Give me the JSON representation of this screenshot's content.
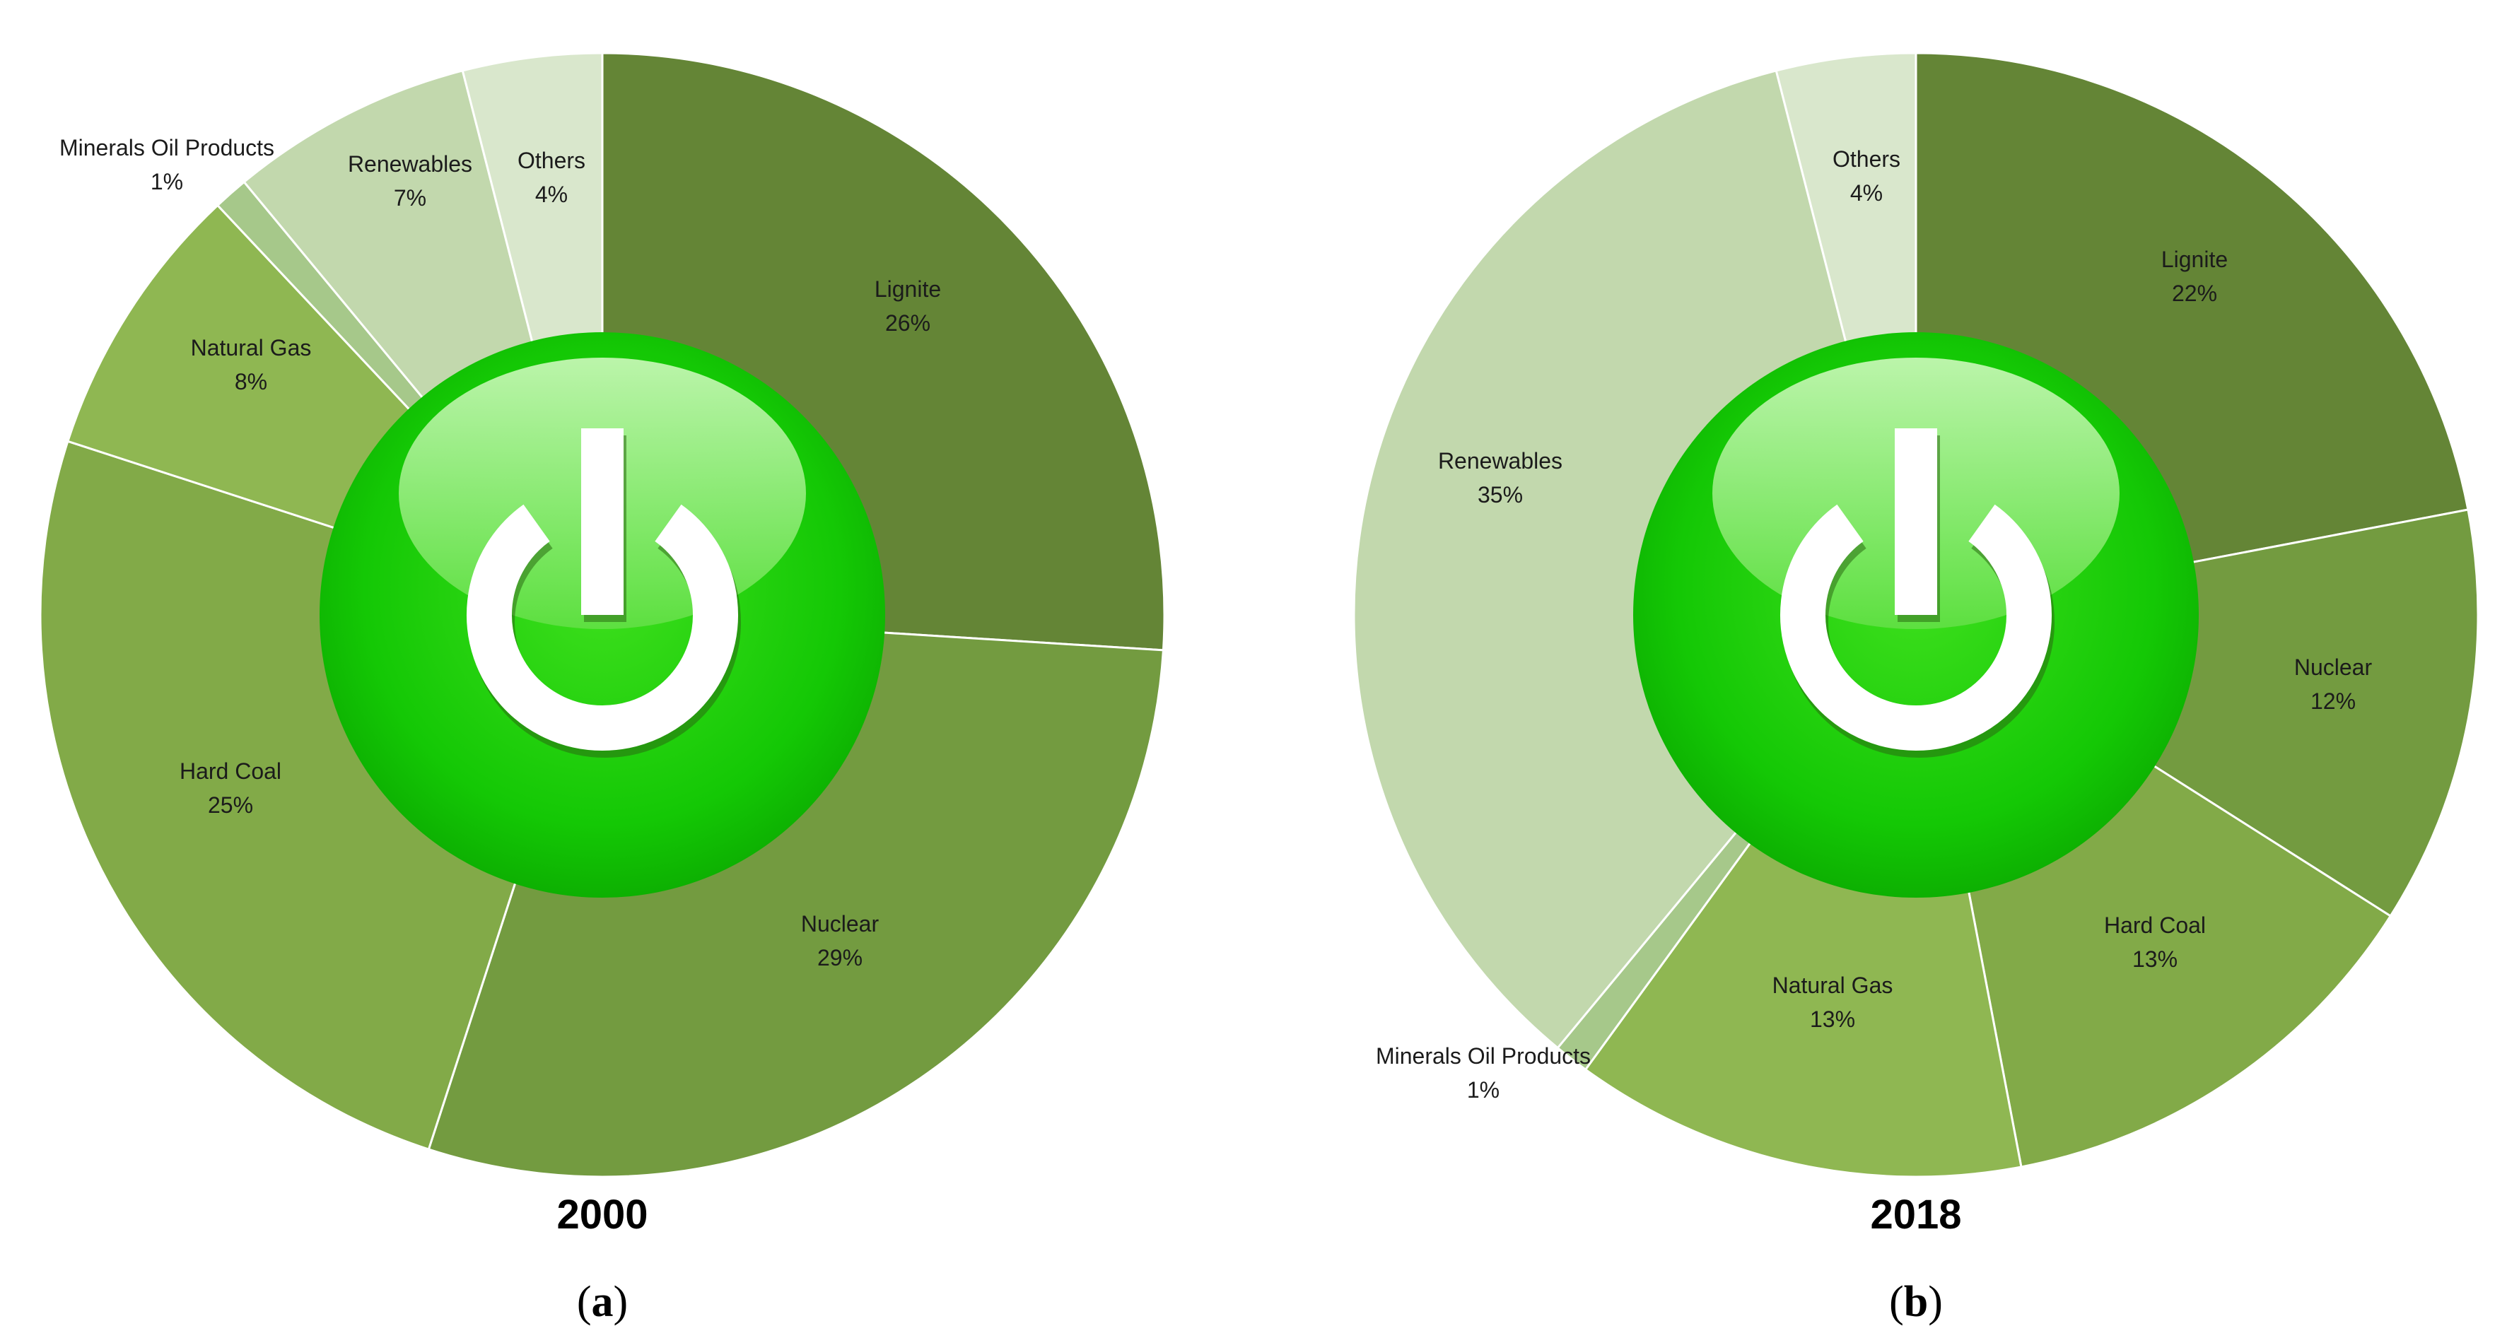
{
  "chart_data": [
    {
      "type": "pie",
      "title": "2000",
      "caption": {
        "open": "(",
        "letter": "a",
        "close": ")"
      },
      "slices": [
        {
          "name": "Lignite",
          "value": 26,
          "label": "26%",
          "color": "#648536"
        },
        {
          "name": "Nuclear",
          "value": 29,
          "label": "29%",
          "color": "#739b40"
        },
        {
          "name": "Hard Coal",
          "value": 25,
          "label": "25%",
          "color": "#82aa48"
        },
        {
          "name": "Natural Gas",
          "value": 8,
          "label": "8%",
          "color": "#8fb752"
        },
        {
          "name": "Minerals Oil Products",
          "value": 1,
          "label": "1%",
          "color": "#a6c88a"
        },
        {
          "name": "Renewables",
          "value": 7,
          "label": "7%",
          "color": "#c2d8ad"
        },
        {
          "name": "Others",
          "value": 4,
          "label": "4%",
          "color": "#d9e7cc"
        }
      ]
    },
    {
      "type": "pie",
      "title": "2018",
      "caption": {
        "open": "(",
        "letter": "b",
        "close": ")"
      },
      "slices": [
        {
          "name": "Lignite",
          "value": 22,
          "label": "22%",
          "color": "#648536"
        },
        {
          "name": "Nuclear",
          "value": 12,
          "label": "12%",
          "color": "#739b40"
        },
        {
          "name": "Hard Coal",
          "value": 13,
          "label": "13%",
          "color": "#82aa48"
        },
        {
          "name": "Natural Gas",
          "value": 13,
          "label": "13%",
          "color": "#8fb752"
        },
        {
          "name": "Minerals Oil Products",
          "value": 1,
          "label": "1%",
          "color": "#a6c88a"
        },
        {
          "name": "Renewables",
          "value": 35,
          "label": "35%",
          "color": "#c2d8ad"
        },
        {
          "name": "Others",
          "value": 4,
          "label": "4%",
          "color": "#d9e7cc"
        }
      ]
    }
  ],
  "center_icon": "power-button-icon",
  "colors": {
    "button_green": "#1fcd05",
    "button_highlight": "#b6f5a4",
    "icon_white": "#ffffff"
  }
}
